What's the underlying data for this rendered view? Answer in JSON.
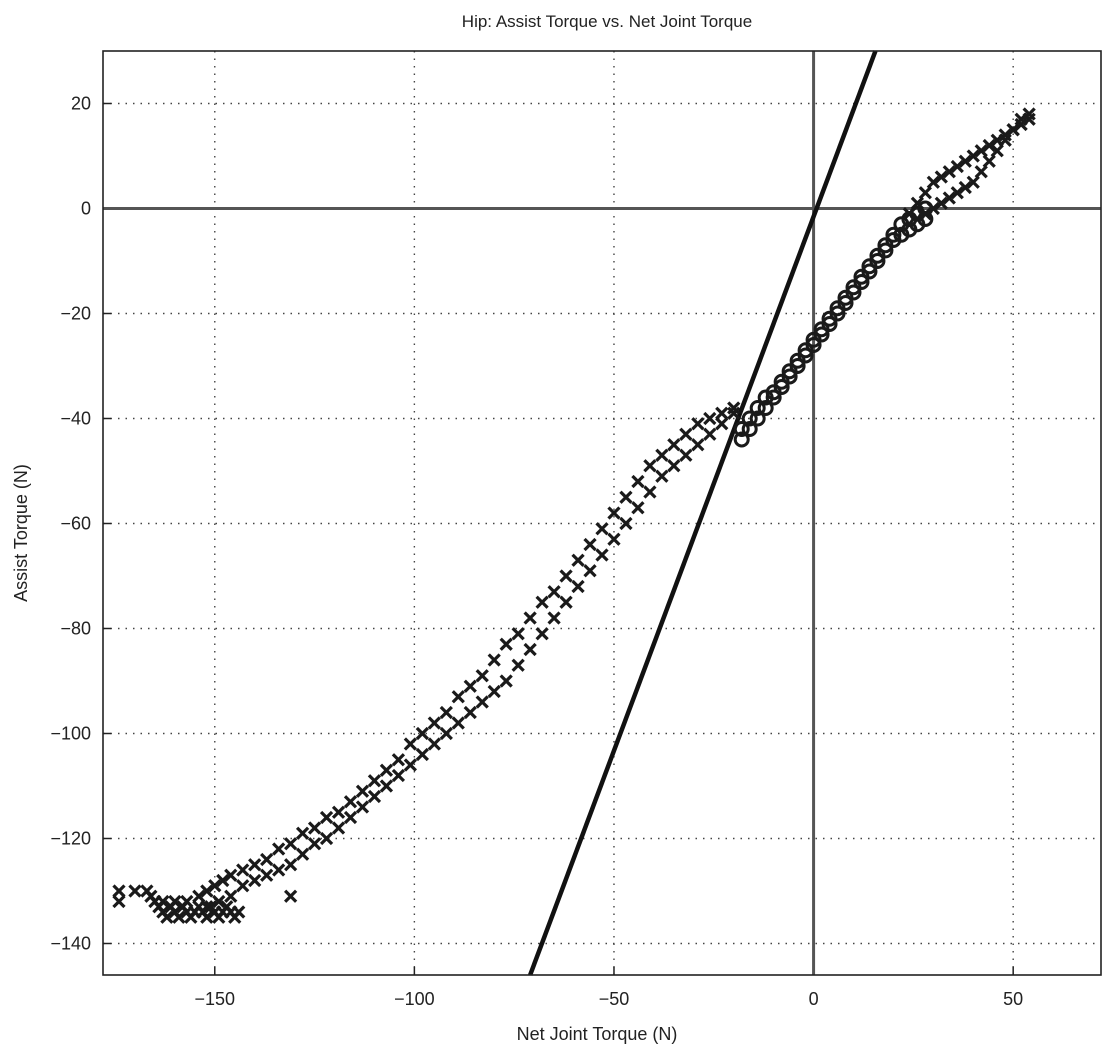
{
  "chart_data": {
    "type": "scatter",
    "title": "Hip: Assist Torque vs. Net Joint Torque",
    "xlabel": "Net Joint Torque (N)",
    "ylabel": "Assist Torque (N)",
    "xlim": [
      -178,
      72
    ],
    "ylim": [
      -146,
      30
    ],
    "xticks": [
      -150,
      -100,
      -50,
      0,
      50
    ],
    "yticks": [
      20,
      0,
      -20,
      -40,
      -60,
      -80,
      -100,
      -120,
      -140
    ],
    "grid": true,
    "legend": "none",
    "zero_lines": {
      "x": 0,
      "y": 0
    },
    "line": {
      "x": [
        -71,
        15.5
      ],
      "y": [
        -146,
        30
      ]
    },
    "series": [
      {
        "marker": "x",
        "x": [
          -174,
          -174,
          -170,
          -167,
          -166,
          -165,
          -164,
          -163,
          -163,
          -162,
          -161,
          -160,
          -160,
          -159,
          -158,
          -157,
          -156,
          -155,
          -154,
          -153,
          -152,
          -151,
          -150,
          -149,
          -148,
          -147,
          -146,
          -145,
          -144,
          -131,
          -157,
          -154,
          -152,
          -150,
          -148,
          -146,
          -143,
          -140,
          -137,
          -134,
          -131,
          -128,
          -125,
          -122,
          -119,
          -116,
          -113,
          -110,
          -107,
          -104,
          -101,
          -98,
          -95,
          -92,
          -89,
          -86,
          -83,
          -80,
          -77,
          -74,
          -71,
          -68,
          -65,
          -62,
          -59,
          -56,
          -53,
          -50,
          -47,
          -44,
          -41,
          -38,
          -35,
          -32,
          -29,
          -26,
          -23,
          -20,
          -155,
          -152,
          -149,
          -146,
          -143,
          -140,
          -137,
          -134,
          -131,
          -128,
          -125,
          -122,
          -119,
          -116,
          -113,
          -110,
          -107,
          -104,
          -101,
          -98,
          -95,
          -92,
          -89,
          -86,
          -83,
          -80,
          -77,
          -74,
          -71,
          -68,
          -65,
          -62,
          -59,
          -56,
          -53,
          -50,
          -47,
          -44,
          -41,
          -38,
          -35,
          -32,
          -29,
          -26,
          -23,
          -20,
          24,
          26,
          28,
          30,
          32,
          34,
          36,
          38,
          40,
          42,
          44,
          46,
          48,
          50,
          52,
          54,
          28,
          30,
          32,
          34,
          36,
          38,
          40,
          42,
          44,
          46,
          48,
          50,
          52,
          54
        ],
        "y": [
          -130,
          -132,
          -130,
          -130,
          -131,
          -132,
          -133,
          -134,
          -132,
          -135,
          -133,
          -134,
          -132,
          -135,
          -133,
          -134,
          -135,
          -134,
          -133,
          -134,
          -135,
          -133,
          -134,
          -135,
          -134,
          -133,
          -134,
          -135,
          -134,
          -131,
          -132,
          -131,
          -130,
          -129,
          -128,
          -127,
          -126,
          -125,
          -124,
          -122,
          -121,
          -119,
          -118,
          -116,
          -115,
          -113,
          -111,
          -109,
          -107,
          -105,
          -102,
          -100,
          -98,
          -96,
          -93,
          -91,
          -89,
          -86,
          -83,
          -81,
          -78,
          -75,
          -73,
          -70,
          -67,
          -64,
          -61,
          -58,
          -55,
          -52,
          -49,
          -47,
          -45,
          -43,
          -41,
          -40,
          -39,
          -38,
          -134,
          -133,
          -132,
          -131,
          -129,
          -128,
          -127,
          -126,
          -125,
          -123,
          -121,
          -120,
          -118,
          -116,
          -114,
          -112,
          -110,
          -108,
          -106,
          -104,
          -102,
          -100,
          -98,
          -96,
          -94,
          -92,
          -90,
          -87,
          -84,
          -81,
          -78,
          -75,
          -72,
          -69,
          -66,
          -63,
          -60,
          -57,
          -54,
          -51,
          -49,
          -47,
          -45,
          -43,
          -41,
          -39,
          -1,
          1,
          3,
          5,
          6,
          7,
          8,
          9,
          10,
          11,
          12,
          13,
          14,
          15,
          16,
          17,
          -1,
          0,
          1,
          2,
          3,
          4,
          5,
          7,
          9,
          11,
          13,
          15,
          17,
          18
        ]
      },
      {
        "marker": "o",
        "x": [
          -18,
          -16,
          -14,
          -12,
          -10,
          -8,
          -6,
          -4,
          -2,
          0,
          2,
          4,
          6,
          8,
          10,
          12,
          14,
          16,
          18,
          20,
          22,
          24,
          26,
          28,
          -18,
          -16,
          -14,
          -12,
          -10,
          -8,
          -6,
          -4,
          -2,
          0,
          2,
          4,
          6,
          8,
          10,
          12,
          14,
          16,
          18,
          20,
          22,
          24,
          26,
          28
        ],
        "y": [
          -42,
          -40,
          -38,
          -36,
          -35,
          -33,
          -31,
          -29,
          -27,
          -25,
          -23,
          -21,
          -19,
          -17,
          -15,
          -13,
          -11,
          -9,
          -7,
          -5,
          -3,
          -2,
          -1,
          0,
          -44,
          -42,
          -40,
          -38,
          -36,
          -34,
          -32,
          -30,
          -28,
          -26,
          -24,
          -22,
          -20,
          -18,
          -16,
          -14,
          -12,
          -10,
          -8,
          -6,
          -5,
          -4,
          -3,
          -2
        ]
      }
    ]
  }
}
